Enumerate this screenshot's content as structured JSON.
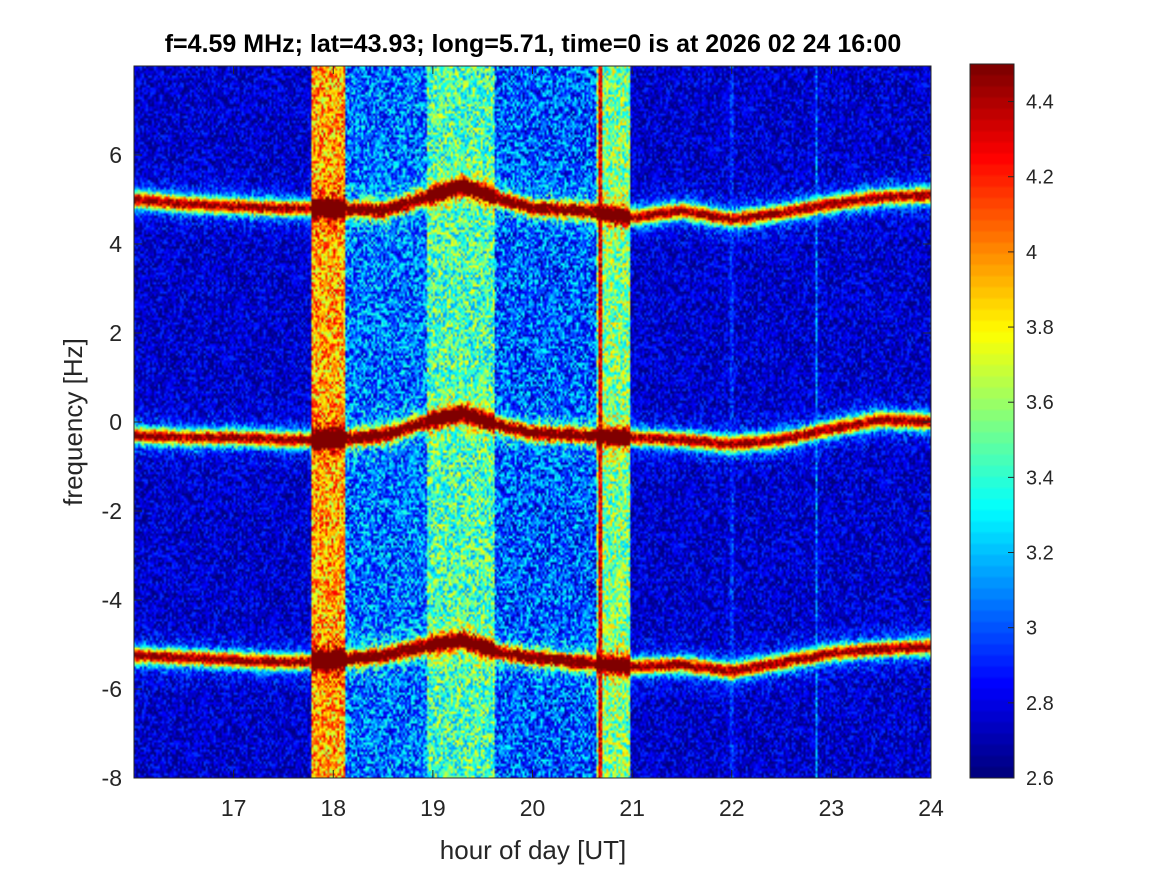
{
  "chart_data": {
    "type": "heatmap",
    "title": "f=4.59 MHz;  lat=43.93; long=5.71, time=0 is at 2026 02 24 16:00",
    "xlabel": "hour of day [UT]",
    "ylabel": "frequency [Hz]",
    "xlim": [
      16,
      24
    ],
    "ylim": [
      -8,
      8
    ],
    "x_ticks": [
      17,
      18,
      19,
      20,
      21,
      22,
      23,
      24
    ],
    "x_tick_labels": [
      "17",
      "18",
      "19",
      "20",
      "21",
      "22",
      "23",
      "24"
    ],
    "y_ticks": [
      -8,
      -6,
      -4,
      -2,
      0,
      2,
      4,
      6
    ],
    "y_tick_labels": [
      "-8",
      "-6",
      "-4",
      "-2",
      "0",
      "2",
      "4",
      "6"
    ],
    "colorbar": {
      "colormap": "jet",
      "range": [
        2.6,
        4.5
      ],
      "ticks": [
        2.6,
        2.8,
        3.0,
        3.2,
        3.4,
        3.6,
        3.8,
        4.0,
        4.2,
        4.4
      ],
      "tick_labels": [
        "2.6",
        "2.8",
        "3",
        "3.2",
        "3.4",
        "3.6",
        "3.8",
        "4",
        "4.2",
        "4.4"
      ]
    },
    "grid": false,
    "features": {
      "traces": [
        {
          "x": [
            16.0,
            16.5,
            17.0,
            17.5,
            18.0,
            18.5,
            19.0,
            19.3,
            19.7,
            20.0,
            20.5,
            21.0,
            21.5,
            22.0,
            22.5,
            23.0,
            23.5,
            24.0
          ],
          "y": [
            5.0,
            4.9,
            4.85,
            4.8,
            4.8,
            4.75,
            5.1,
            5.3,
            5.0,
            4.8,
            4.75,
            4.6,
            4.75,
            4.55,
            4.7,
            4.9,
            5.05,
            5.1
          ]
        },
        {
          "x": [
            16.0,
            16.5,
            17.0,
            17.5,
            18.0,
            18.5,
            19.0,
            19.3,
            19.7,
            20.0,
            20.5,
            21.0,
            21.5,
            22.0,
            22.5,
            23.0,
            23.5,
            24.0
          ],
          "y": [
            -0.3,
            -0.35,
            -0.35,
            -0.4,
            -0.4,
            -0.3,
            0.05,
            0.2,
            -0.1,
            -0.25,
            -0.3,
            -0.35,
            -0.4,
            -0.5,
            -0.4,
            -0.15,
            0.05,
            0.0
          ]
        },
        {
          "x": [
            16.0,
            16.5,
            17.0,
            17.5,
            18.0,
            18.5,
            19.0,
            19.3,
            19.7,
            20.0,
            20.5,
            21.0,
            21.5,
            22.0,
            22.5,
            23.0,
            23.5,
            24.0
          ],
          "y": [
            -5.25,
            -5.3,
            -5.35,
            -5.4,
            -5.35,
            -5.25,
            -5.0,
            -4.9,
            -5.2,
            -5.3,
            -5.4,
            -5.5,
            -5.45,
            -5.6,
            -5.4,
            -5.2,
            -5.1,
            -5.05
          ]
        }
      ],
      "bands": [
        {
          "x_start": 17.78,
          "x_end": 18.12,
          "level": 3.95
        },
        {
          "x_start": 18.12,
          "x_end": 18.95,
          "level": 3.05
        },
        {
          "x_start": 18.95,
          "x_end": 19.62,
          "level": 3.45
        },
        {
          "x_start": 19.62,
          "x_end": 20.65,
          "level": 3.0
        },
        {
          "x_start": 20.65,
          "x_end": 20.98,
          "level": 3.55
        }
      ],
      "spikes": [
        {
          "x": 20.68,
          "level": 4.5
        },
        {
          "x": 22.0,
          "level": 3.1
        },
        {
          "x": 22.85,
          "level": 3.3
        }
      ]
    }
  }
}
